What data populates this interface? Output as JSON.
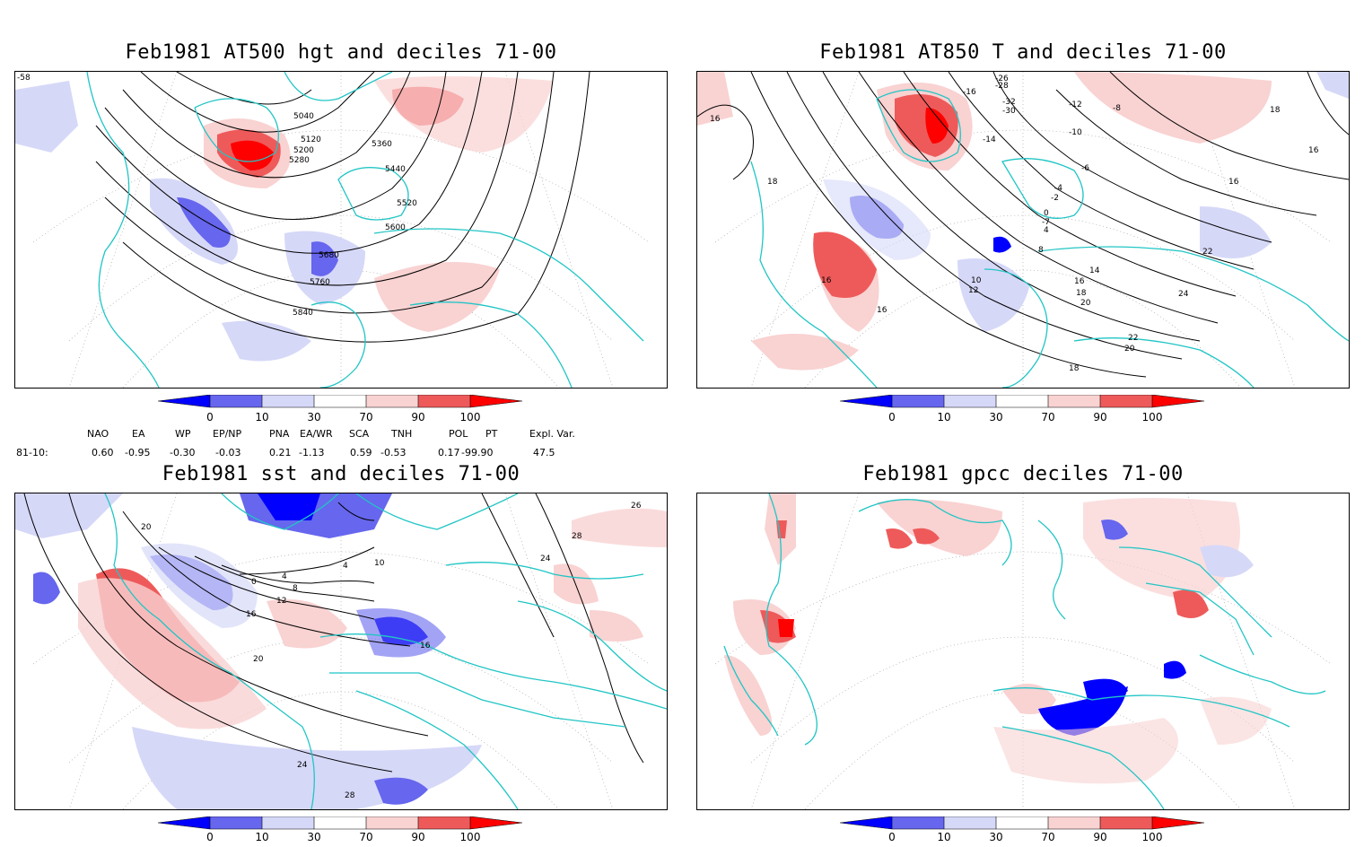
{
  "panels": [
    {
      "title": "Feb1981 AT500 hgt and deciles 71-00",
      "contour_labels": [
        "5040",
        "5120",
        "5200",
        "5280",
        "5360",
        "5440",
        "5520",
        "5600",
        "5680",
        "5760",
        "5840",
        "-58"
      ]
    },
    {
      "title": "Feb1981 AT850 T and deciles 71-00",
      "contour_labels": [
        "16",
        "18",
        "16",
        "16",
        "-26",
        "-28",
        "-30",
        "-32",
        "-16",
        "-12",
        "-8",
        "-10",
        "-14",
        "-6",
        "-4",
        "-2",
        "0",
        "-7",
        "4",
        "8",
        "10",
        "12",
        "14",
        "16",
        "18",
        "20",
        "22",
        "24",
        "22",
        "20",
        "18",
        "16",
        "18",
        "16"
      ]
    },
    {
      "title": "Feb1981 sst and deciles 71-00",
      "contour_labels": [
        "20",
        "0",
        "4",
        "8",
        "12",
        "16",
        "20",
        "24",
        "28",
        "24",
        "28",
        "4",
        "16",
        "10",
        "26"
      ]
    },
    {
      "title": "Feb1981 gpcc deciles 71-00",
      "contour_labels": []
    }
  ],
  "colorbar": {
    "labels": [
      "0",
      "10",
      "30",
      "70",
      "90",
      "100"
    ],
    "colors": [
      "#0000ff",
      "#6666ee",
      "#d6d8f8",
      "#ffffff",
      "#f9d2d2",
      "#ee5a5a",
      "#ff0000"
    ]
  },
  "indices": {
    "header": [
      "NAO",
      "EA",
      "WP",
      "EP/NP",
      "PNA",
      "EA/WR",
      "SCA",
      "TNH",
      "POL",
      "PT",
      "Expl. Var."
    ],
    "row_label": "81-10:",
    "values": [
      "0.60",
      "-0.95",
      "-0.30",
      "-0.03",
      "0.21",
      "-1.13",
      "0.59",
      "-0.53",
      "0.17",
      "-99.90",
      "47.5"
    ]
  },
  "colors": {
    "coast": "#22c5c5",
    "contour": "#000000",
    "grid": "#999999"
  }
}
